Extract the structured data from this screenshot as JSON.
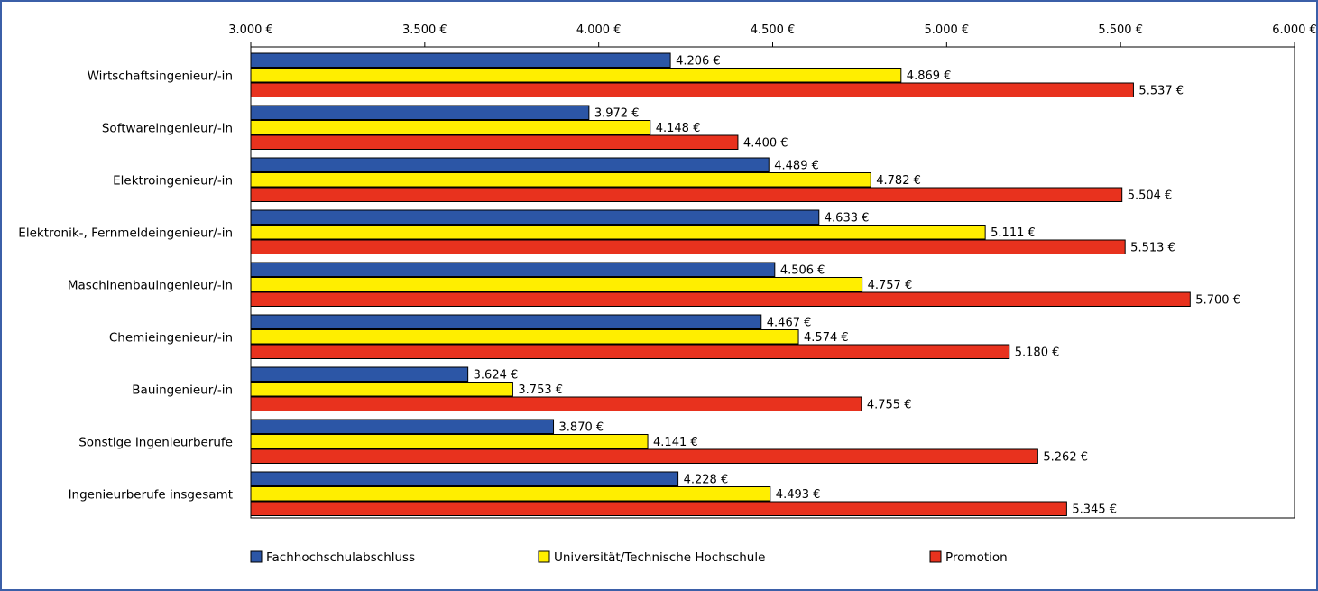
{
  "chart_data": {
    "type": "bar",
    "orientation": "horizontal",
    "title": "",
    "xlabel": "",
    "ylabel": "",
    "xlim": [
      3000,
      6000
    ],
    "tick_values": [
      3000,
      3500,
      4000,
      4500,
      5000,
      5500,
      6000
    ],
    "tick_labels": [
      "3.000 €",
      "3.500 €",
      "4.000 €",
      "4.500 €",
      "5.000 €",
      "5.500 €",
      "6.000 €"
    ],
    "grid": false,
    "legend_position": "bottom",
    "categories": [
      "Wirtschaftsingenieur/-in",
      "Softwareingenieur/-in",
      "Elektroingenieur/-in",
      "Elektronik-, Fernmeldeingenieur/-in",
      "Maschinenbauingenieur/-in",
      "Chemieingenieur/-in",
      "Bauingenieur/-in",
      "Sonstige Ingenieurberufe",
      "Ingenieurberufe insgesamt"
    ],
    "series": [
      {
        "name": "Fachhochschulabschluss",
        "color": "#2c56a6",
        "values": [
          4206,
          3972,
          4489,
          4633,
          4506,
          4467,
          3624,
          3870,
          4228
        ],
        "labels": [
          "4.206 €",
          "3.972 €",
          "4.489 €",
          "4.633 €",
          "4.506 €",
          "4.467 €",
          "3.624 €",
          "3.870 €",
          "4.228 €"
        ]
      },
      {
        "name": "Universität/Technische Hochschule",
        "color": "#ffee00",
        "values": [
          4869,
          4148,
          4782,
          5111,
          4757,
          4574,
          3753,
          4141,
          4493
        ],
        "labels": [
          "4.869 €",
          "4.148 €",
          "4.782 €",
          "5.111 €",
          "4.757 €",
          "4.574 €",
          "3.753 €",
          "4.141 €",
          "4.493 €"
        ]
      },
      {
        "name": "Promotion",
        "color": "#e8321e",
        "values": [
          5537,
          4400,
          5504,
          5513,
          5700,
          5180,
          4755,
          5262,
          5345
        ],
        "labels": [
          "5.537 €",
          "4.400 €",
          "5.504 €",
          "5.513 €",
          "5.700 €",
          "5.180 €",
          "4.755 €",
          "5.262 €",
          "5.345 €"
        ]
      }
    ]
  }
}
